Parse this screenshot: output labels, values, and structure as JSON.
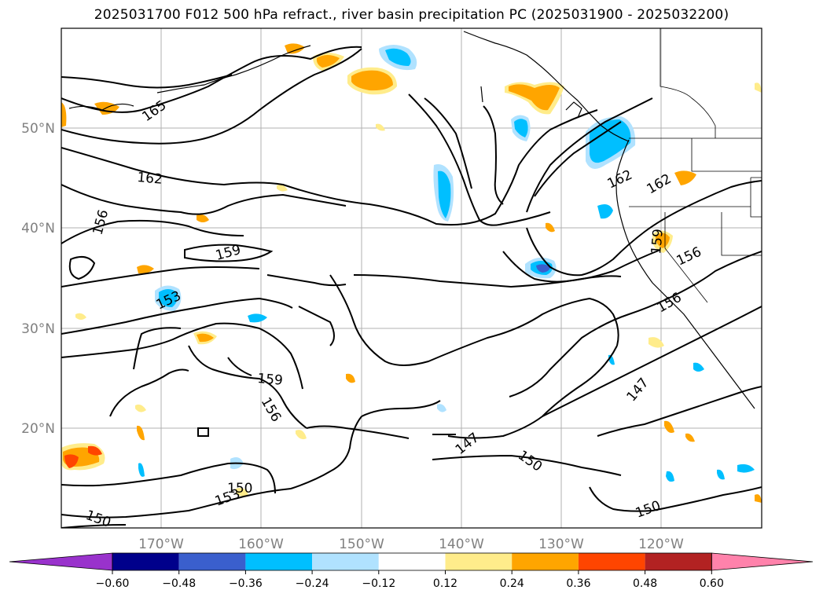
{
  "title": "2025031700 F012 500 hPa refract., river basin precipitation PC (2025031900 - 2025032200)",
  "map": {
    "lat_labels": [
      "50°N",
      "40°N",
      "30°N",
      "20°N"
    ],
    "lon_labels": [
      "170°W",
      "160°W",
      "150°W",
      "140°W",
      "130°W",
      "120°W"
    ],
    "contour_labels": [
      {
        "text": "165"
      },
      {
        "text": "162"
      },
      {
        "text": "156"
      },
      {
        "text": "159"
      },
      {
        "text": "153"
      },
      {
        "text": "159"
      },
      {
        "text": "156"
      },
      {
        "text": "150"
      },
      {
        "text": "153"
      },
      {
        "text": "150"
      },
      {
        "text": "147"
      },
      {
        "text": "150"
      },
      {
        "text": "147"
      },
      {
        "text": "150"
      },
      {
        "text": "162"
      },
      {
        "text": "162"
      },
      {
        "text": "159"
      },
      {
        "text": "156"
      },
      {
        "text": "156"
      }
    ]
  },
  "colorbar": {
    "colors": [
      "#9932CC",
      "#00008B",
      "#3A5FCD",
      "#00BFFF",
      "#B0E2FF",
      "#FFFFFF",
      "#FFEC8B",
      "#FFA500",
      "#FF4500",
      "#B22222",
      "#FF82AB"
    ],
    "tick_labels": [
      "−0.60",
      "−0.48",
      "−0.36",
      "−0.24",
      "−0.12",
      "0.12",
      "0.24",
      "0.36",
      "0.48",
      "0.60"
    ]
  }
}
